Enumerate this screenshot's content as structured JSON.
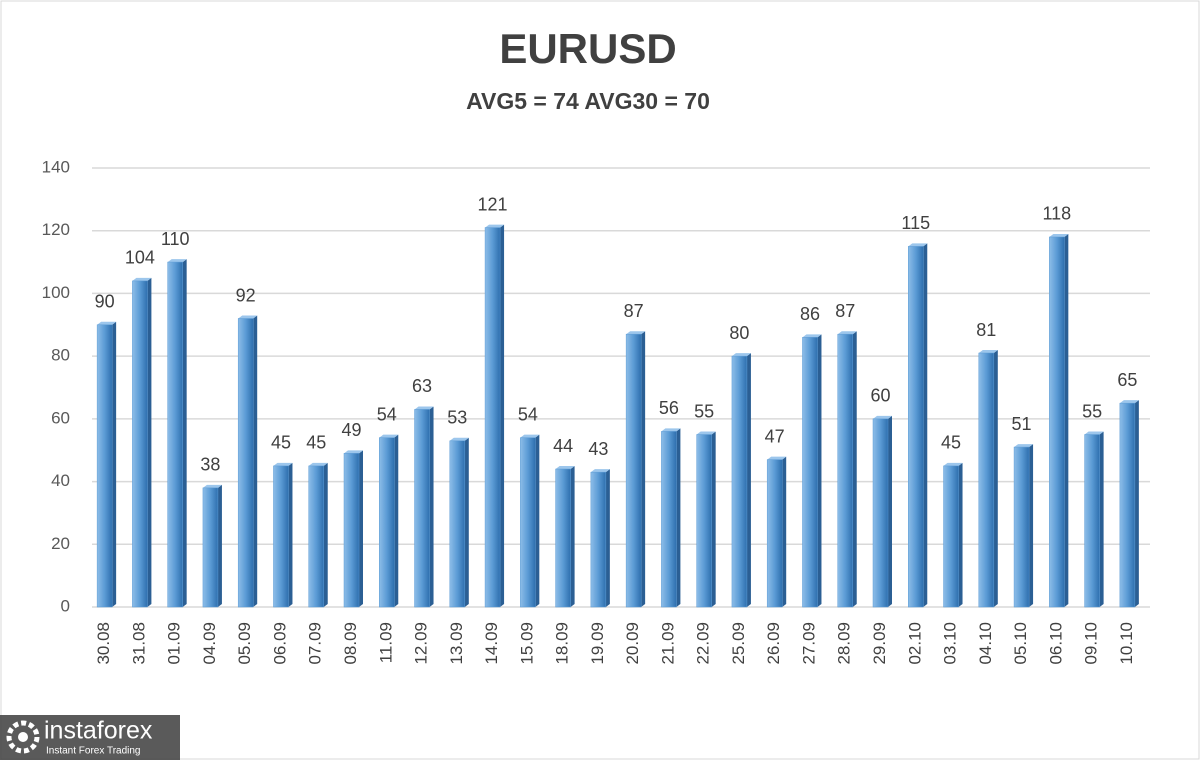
{
  "chart_data": {
    "type": "bar",
    "title": "EURUSD",
    "subtitle": "AVG5 = 74 AVG30 = 70",
    "categories": [
      "30.08",
      "31.08",
      "01.09",
      "04.09",
      "05.09",
      "06.09",
      "07.09",
      "08.09",
      "11.09",
      "12.09",
      "13.09",
      "14.09",
      "15.09",
      "18.09",
      "19.09",
      "20.09",
      "21.09",
      "22.09",
      "25.09",
      "26.09",
      "27.09",
      "28.09",
      "29.09",
      "02.10",
      "03.10",
      "04.10",
      "05.10",
      "06.10",
      "09.10",
      "10.10"
    ],
    "values": [
      90,
      104,
      110,
      38,
      92,
      45,
      45,
      49,
      54,
      63,
      53,
      121,
      54,
      44,
      43,
      87,
      56,
      55,
      80,
      47,
      86,
      87,
      60,
      115,
      45,
      81,
      51,
      118,
      55,
      65
    ],
    "color": "#5b9bd5",
    "ylim": [
      0,
      140
    ],
    "yticks": [
      0,
      20,
      40,
      60,
      80,
      100,
      120,
      140
    ],
    "grid": true
  },
  "logo": {
    "name": "instaforex",
    "tagline": "Instant Forex Trading"
  }
}
